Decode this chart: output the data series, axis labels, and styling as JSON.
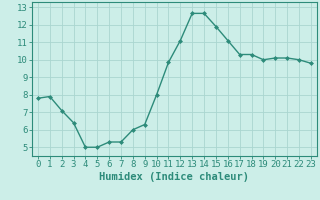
{
  "x": [
    0,
    1,
    2,
    3,
    4,
    5,
    6,
    7,
    8,
    9,
    10,
    11,
    12,
    13,
    14,
    15,
    16,
    17,
    18,
    19,
    20,
    21,
    22,
    23
  ],
  "y": [
    7.8,
    7.9,
    7.1,
    6.4,
    5.0,
    5.0,
    5.3,
    5.3,
    6.0,
    6.3,
    8.0,
    9.85,
    11.1,
    12.65,
    12.65,
    11.9,
    11.1,
    10.3,
    10.3,
    10.0,
    10.1,
    10.1,
    10.0,
    9.8
  ],
  "xlabel": "Humidex (Indice chaleur)",
  "ylim": [
    4.5,
    13.3
  ],
  "xlim": [
    -0.5,
    23.5
  ],
  "yticks": [
    5,
    6,
    7,
    8,
    9,
    10,
    11,
    12,
    13
  ],
  "xticks": [
    0,
    1,
    2,
    3,
    4,
    5,
    6,
    7,
    8,
    9,
    10,
    11,
    12,
    13,
    14,
    15,
    16,
    17,
    18,
    19,
    20,
    21,
    22,
    23
  ],
  "line_color": "#2d8b7a",
  "marker_color": "#2d8b7a",
  "bg_color": "#cceee8",
  "grid_color": "#aad6d0",
  "axis_color": "#2d8b7a",
  "tick_color": "#2d8b7a",
  "label_fontsize": 7.5,
  "tick_fontsize": 6.5
}
